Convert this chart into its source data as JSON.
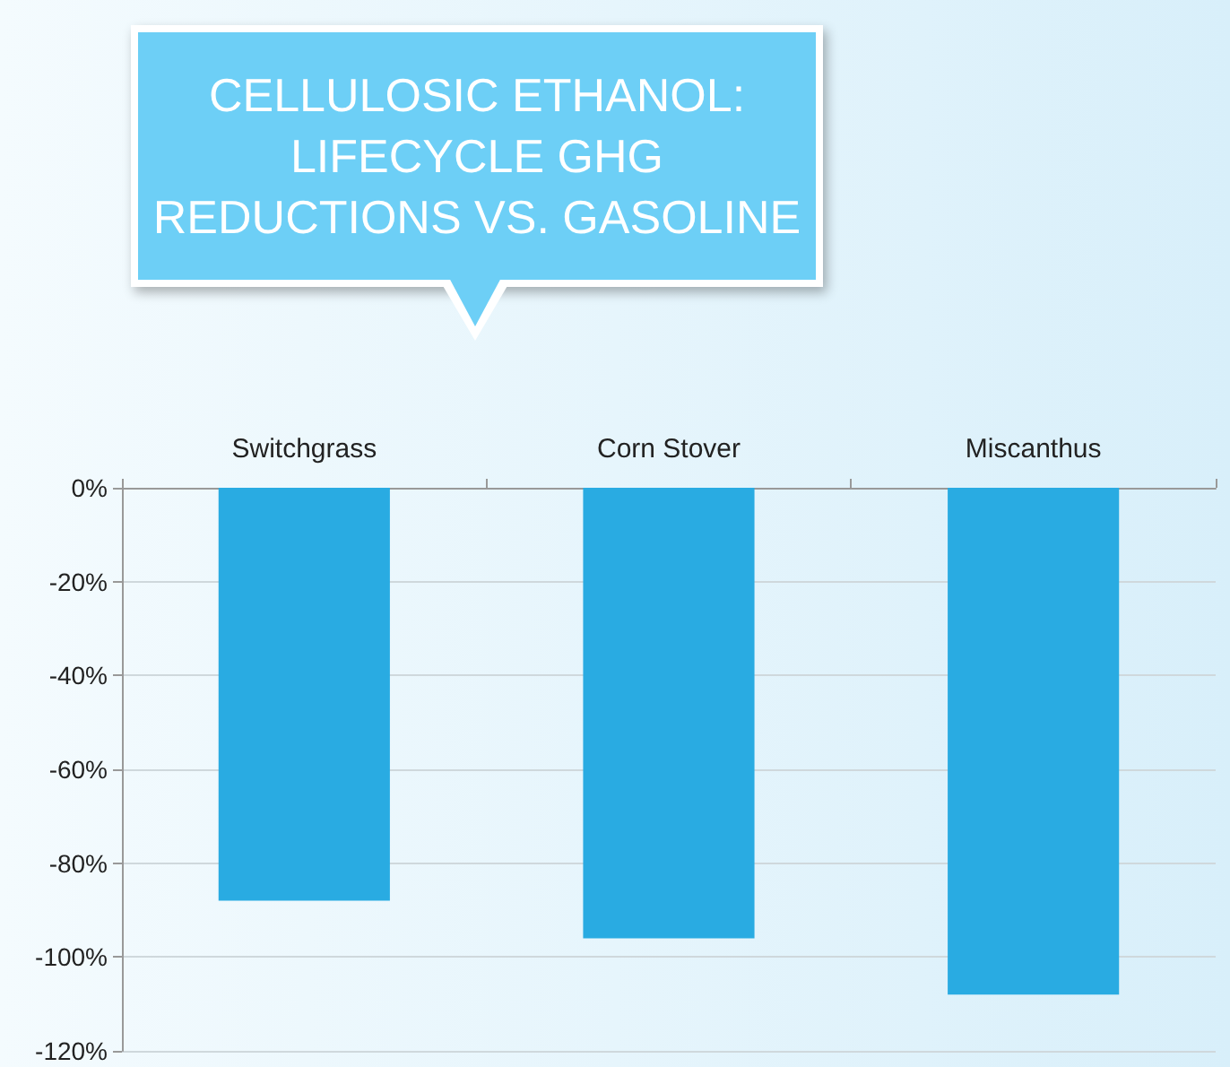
{
  "chart_data": {
    "type": "bar",
    "title": "CELLULOSIC ETHANOL:\nLIFECYCLE GHG\nREDUCTIONS VS. GASOLINE",
    "categories": [
      "Switchgrass",
      "Corn Stover",
      "Miscanthus"
    ],
    "values": [
      -88,
      -96,
      -108
    ],
    "color": "#29abe2",
    "ylim": [
      -120,
      0
    ],
    "yticks": [
      {
        "value": -120,
        "label": "-120%"
      },
      {
        "value": -100,
        "label": "-100%"
      },
      {
        "value": -80,
        "label": "-80%"
      },
      {
        "value": -60,
        "label": "-60%"
      },
      {
        "value": -40,
        "label": "-40%"
      },
      {
        "value": -20,
        "label": "-20%"
      },
      {
        "value": 0,
        "label": "0%"
      }
    ],
    "grid": "y"
  }
}
